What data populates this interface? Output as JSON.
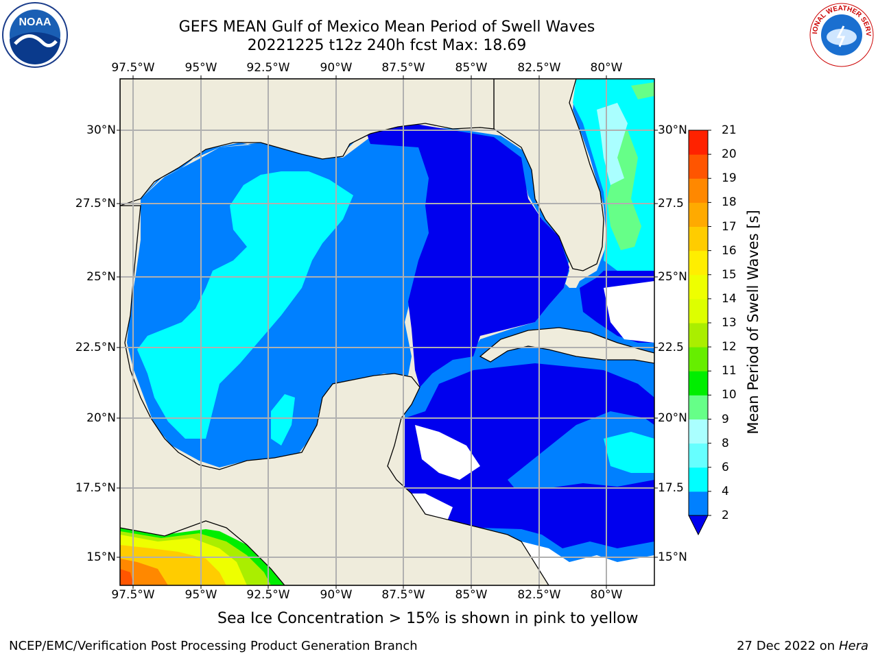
{
  "header": {
    "title_line1": "GEFS MEAN Gulf of Mexico Mean Period of Swell Waves",
    "title_line2": "20221225 t12z 240h fcst   Max: 18.69"
  },
  "map": {
    "lon_ticks_top": [
      "97.5°W",
      "95°W",
      "92.5°W",
      "90°W",
      "87.5°W",
      "85°W",
      "82.5°W",
      "80°W"
    ],
    "lon_ticks_bottom": [
      "97.5°W",
      "95°W",
      "92.5°W",
      "90°W",
      "87.5°W",
      "85°W",
      "82.5°W",
      "80°W"
    ],
    "lat_ticks_left": [
      "30°N",
      "27.5°N",
      "25°N",
      "22.5°N",
      "20°N",
      "17.5°N",
      "15°N"
    ],
    "lat_ticks_right": [
      "30°N",
      "27.5",
      "25°N",
      "22.5",
      "20°N",
      "17.5",
      "15°N"
    ],
    "land_color": "#efecdc",
    "grid_color": "#b0b0b0"
  },
  "colorbar": {
    "title": "Mean Period of Swell Waves [s]",
    "levels": [
      "2",
      "4",
      "6",
      "8",
      "9",
      "10",
      "11",
      "12",
      "13",
      "14",
      "15",
      "16",
      "17",
      "18",
      "19",
      "20",
      "21"
    ],
    "colors": [
      "#0000ee",
      "#0080ff",
      "#00ffff",
      "#66ffff",
      "#aaffff",
      "#66ff88",
      "#00ee00",
      "#66ee00",
      "#aaee00",
      "#ddff00",
      "#eeff00",
      "#ffee00",
      "#ffcc00",
      "#ffaa00",
      "#ff8800",
      "#ff5500",
      "#ff2200",
      "#ff0000"
    ]
  },
  "notes": {
    "ice_note": "Sea Ice Concentration > 15% is shown in pink to yellow"
  },
  "footer": {
    "left": "NCEP/EMC/Verification Post Processing Product Generation Branch",
    "date": "27 Dec 2022 on",
    "host": "Hera"
  },
  "logos": {
    "noaa_text": "NOAA",
    "nws_text": "NATIONAL WEATHER SERVICE"
  }
}
